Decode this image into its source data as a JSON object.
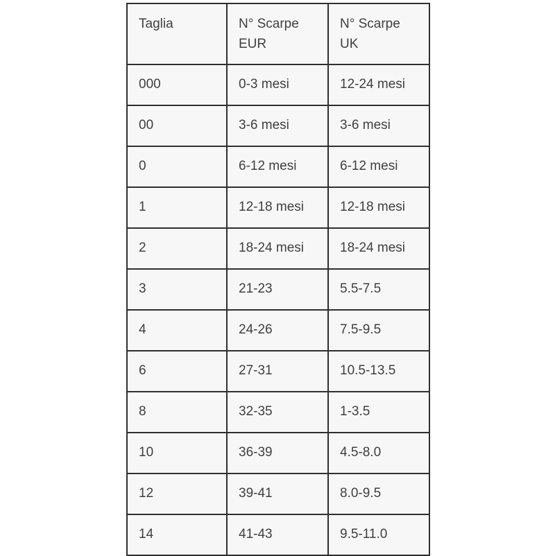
{
  "table": {
    "columns": [
      {
        "label": "Taglia"
      },
      {
        "label": "N° Scarpe\nEUR"
      },
      {
        "label": "N° Scarpe\nUK"
      }
    ],
    "rows": [
      [
        "000",
        "0-3 mesi",
        "12-24 mesi"
      ],
      [
        "00",
        "3-6 mesi",
        "3-6 mesi"
      ],
      [
        "0",
        "6-12 mesi",
        "6-12 mesi"
      ],
      [
        "1",
        "12-18 mesi",
        "12-18 mesi"
      ],
      [
        "2",
        "18-24 mesi",
        "18-24 mesi"
      ],
      [
        "3",
        "21-23",
        "5.5-7.5"
      ],
      [
        "4",
        "24-26",
        "7.5-9.5"
      ],
      [
        "6",
        "27-31",
        "10.5-13.5"
      ],
      [
        "8",
        "32-35",
        "1-3.5"
      ],
      [
        "10",
        "36-39",
        "4.5-8.0"
      ],
      [
        "12",
        "39-41",
        "8.0-9.5"
      ],
      [
        "14",
        "41-43",
        "9.5-11.0"
      ]
    ],
    "colors": {
      "border": "#2f2f2f",
      "cell_bg": "#f7f7f7",
      "text": "#3f3f3f",
      "page_bg": "#ffffff"
    }
  }
}
